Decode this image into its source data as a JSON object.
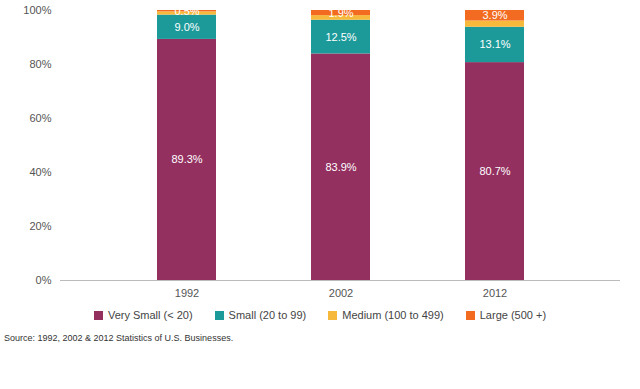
{
  "chart_data": {
    "type": "bar",
    "stacked": true,
    "data_labels": true,
    "legend": "bottom",
    "grid": false,
    "categories": [
      "1992",
      "2002",
      "2012"
    ],
    "ylim": [
      0,
      100
    ],
    "yticks": [
      {
        "value": 0,
        "label": "0%"
      },
      {
        "value": 20,
        "label": "20%"
      },
      {
        "value": 40,
        "label": "40%"
      },
      {
        "value": 60,
        "label": "60%"
      },
      {
        "value": 80,
        "label": "80%"
      },
      {
        "value": 100,
        "label": "100%"
      }
    ],
    "series": [
      {
        "name": "Very Small (< 20)",
        "color": "#93305f",
        "values": [
          89.3,
          83.9,
          80.7
        ],
        "value_labels": [
          "89.3%",
          "83.9%",
          "80.7%"
        ]
      },
      {
        "name": "Small (20 to 99)",
        "color": "#1c9a9a",
        "values": [
          9.0,
          12.5,
          13.1
        ],
        "value_labels": [
          "9.0%",
          "12.5%",
          "13.1%"
        ]
      },
      {
        "name": "Medium (100 to 499)",
        "color": "#f6b93b",
        "values": [
          1.2,
          1.7,
          2.3
        ],
        "value_labels": [
          null,
          null,
          null
        ]
      },
      {
        "name": "Large (500 +)",
        "color": "#f26b21",
        "values": [
          0.5,
          1.9,
          3.9
        ],
        "value_labels": [
          "0.5%",
          "1.9%",
          "3.9%"
        ]
      }
    ],
    "source": "Source: 1992, 2002 & 2012 Statistics of U.S. Businesses."
  }
}
